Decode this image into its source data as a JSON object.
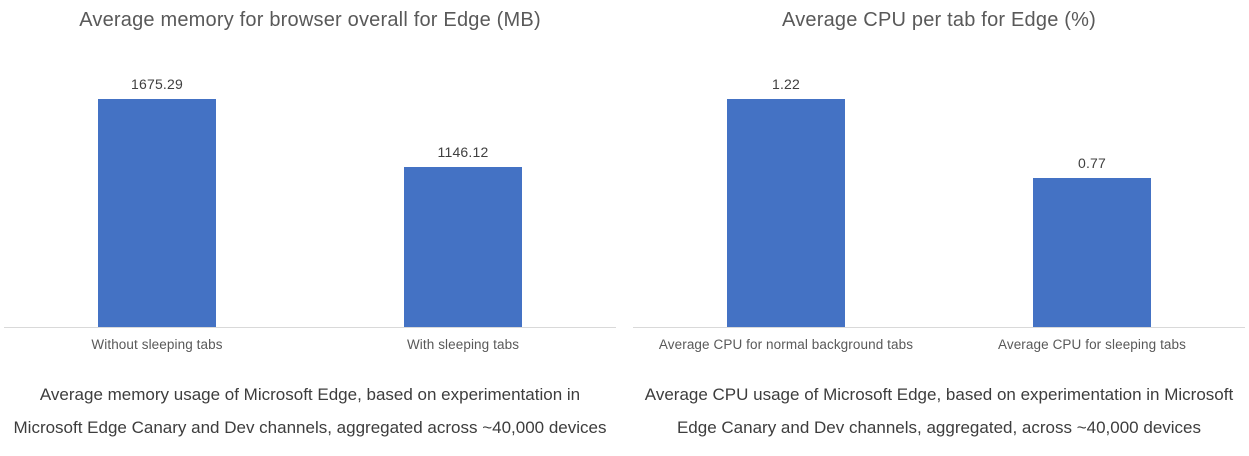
{
  "page": {
    "background": "#ffffff"
  },
  "colors": {
    "bar": "#4472C4",
    "title_text": "#595959",
    "value_text": "#404040",
    "category_text": "#595959",
    "caption_text": "#3d3d3d",
    "axis_line": "#d9d9d9"
  },
  "chart_data": [
    {
      "type": "bar",
      "title": "Average memory for browser overall for Edge (MB)",
      "categories": [
        "Without sleeping tabs",
        "With sleeping tabs"
      ],
      "values": [
        1675.29,
        1146.12
      ],
      "value_labels": [
        "1675.29",
        "1146.12"
      ],
      "xlabel": "",
      "ylabel": "",
      "ylim": [
        0,
        1800
      ],
      "grid": false,
      "legend": false,
      "bar_color": "#4472C4",
      "caption": "Average memory usage of Microsoft Edge, based on experimentation in Microsoft Edge Canary and Dev channels, aggregated across ~40,000 devices"
    },
    {
      "type": "bar",
      "title": "Average CPU per tab for Edge (%)",
      "categories": [
        "Average CPU for normal background tabs",
        "Average CPU for sleeping tabs"
      ],
      "values": [
        1.22,
        0.77
      ],
      "value_labels": [
        "1.22",
        "0.77"
      ],
      "xlabel": "",
      "ylabel": "",
      "ylim": [
        0,
        1.3
      ],
      "grid": false,
      "legend": false,
      "bar_color": "#4472C4",
      "caption": "Average CPU usage of Microsoft Edge, based on experimentation in Microsoft Edge Canary and Dev channels, aggregated, across ~40,000 devices"
    }
  ]
}
